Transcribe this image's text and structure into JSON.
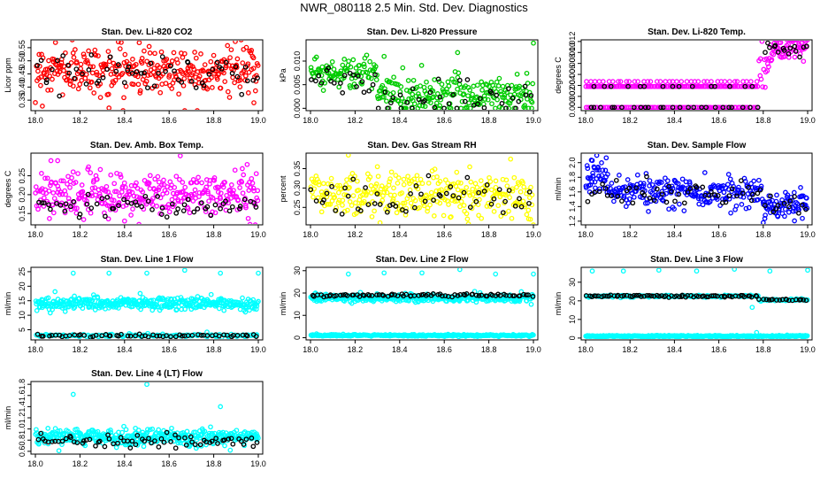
{
  "page": {
    "title": "NWR_080118  2.5 Min. Std. Dev. Diagnostics"
  },
  "colors": {
    "red": "#ff0000",
    "green": "#00cc00",
    "magenta": "#ff00ff",
    "yellow": "#ffff00",
    "blue": "#0000ff",
    "cyan": "#00ffff",
    "black": "#000000"
  },
  "chart_data": [
    {
      "id": "p1",
      "type": "scatter",
      "title": "Stan. Dev. Li-820 CO2",
      "ylabel": "Licor ppm",
      "xlim": [
        18.0,
        19.0
      ],
      "xticks": [
        "18.0",
        "18.2",
        "18.4",
        "18.6",
        "18.8",
        "19.0"
      ],
      "ylim": [
        0.31,
        0.58
      ],
      "yticks": [
        "0.35",
        "0.40",
        "0.45",
        "0.50",
        "0.55"
      ],
      "color": "red",
      "clusters": [
        {
          "x": [
            18.0,
            19.0
          ],
          "mean": 0.465,
          "sd": 0.045,
          "n": 330
        }
      ],
      "black_clusters": [
        {
          "x": [
            18.0,
            19.0
          ],
          "mean": 0.46,
          "sd": 0.035,
          "n": 60
        }
      ],
      "outliers": [
        {
          "x": 18.09,
          "y": 0.57
        },
        {
          "x": 18.33,
          "y": 0.32
        },
        {
          "x": 18.67,
          "y": 0.31
        },
        {
          "x": 18.98,
          "y": 0.34
        }
      ]
    },
    {
      "id": "p2",
      "type": "scatter",
      "title": "Stan. Dev. Li-820 Pressure",
      "ylabel": "kPa",
      "xlim": [
        18.0,
        19.0
      ],
      "xticks": [
        "18.0",
        "18.2",
        "18.4",
        "18.6",
        "18.8",
        "19.0"
      ],
      "ylim": [
        -0.0005,
        0.0145
      ],
      "yticks": [
        "0.000",
        "0.005",
        "0.010"
      ],
      "color": "green",
      "clusters": [
        {
          "x": [
            18.0,
            18.3
          ],
          "mean": 0.0075,
          "sd": 0.0016,
          "n": 90
        },
        {
          "x": [
            18.3,
            19.0
          ],
          "mean": 0.003,
          "sd": 0.0022,
          "n": 220
        }
      ],
      "black_clusters": [
        {
          "x": [
            18.0,
            18.3
          ],
          "mean": 0.006,
          "sd": 0.0015,
          "n": 20
        },
        {
          "x": [
            18.3,
            19.0
          ],
          "mean": 0.002,
          "sd": 0.002,
          "n": 40
        }
      ],
      "floor": 0.0,
      "outliers": [
        {
          "x": 18.33,
          "y": 0.011
        },
        {
          "x": 18.66,
          "y": 0.0118
        },
        {
          "x": 19.0,
          "y": 0.0138
        }
      ]
    },
    {
      "id": "p3",
      "type": "scatter",
      "title": "Stan. Dev. Li-820 Temp.",
      "ylabel": "degrees C",
      "xlim": [
        18.0,
        19.0
      ],
      "xticks": [
        "18.0",
        "18.2",
        "18.4",
        "18.6",
        "18.8",
        "19.0"
      ],
      "ylim": [
        -0.0006,
        0.0123
      ],
      "yticks": [
        "0.000",
        "0.002",
        "0.004",
        "0.006",
        "0.008",
        "0.010",
        "0.012"
      ],
      "color": "magenta",
      "levels": [
        {
          "x": [
            18.0,
            18.78
          ],
          "y": 0.0038,
          "n": 110
        },
        {
          "x": [
            18.0,
            18.78
          ],
          "y": 0.0,
          "n": 90
        },
        {
          "x": [
            18.0,
            18.78
          ],
          "y": 0.0047,
          "n": 40
        }
      ],
      "clusters": [
        {
          "x": [
            18.78,
            18.83
          ],
          "mean": 0.0075,
          "sd": 0.0015,
          "n": 15
        },
        {
          "x": [
            18.83,
            19.0
          ],
          "mean": 0.0108,
          "sd": 0.0009,
          "n": 60
        }
      ],
      "black_clusters": [
        {
          "x": [
            18.0,
            18.78
          ],
          "mean": 0.0,
          "sd": 0.0,
          "n": 25
        },
        {
          "x": [
            18.0,
            18.78
          ],
          "mean": 0.0038,
          "sd": 0.0,
          "n": 15
        },
        {
          "x": [
            18.8,
            19.0
          ],
          "mean": 0.0105,
          "sd": 0.0008,
          "n": 15
        }
      ],
      "outliers": []
    },
    {
      "id": "p4",
      "type": "scatter",
      "title": "Stan. Dev. Amb. Box Temp.",
      "ylabel": "degrees C",
      "xlim": [
        18.0,
        19.0
      ],
      "xticks": [
        "18.0",
        "18.2",
        "18.4",
        "18.6",
        "18.8",
        "19.0"
      ],
      "ylim": [
        0.12,
        0.31
      ],
      "yticks": [
        "0.15",
        "0.20",
        "0.25"
      ],
      "color": "magenta",
      "clusters": [
        {
          "x": [
            18.0,
            19.0
          ],
          "mean": 0.2,
          "sd": 0.03,
          "n": 340
        }
      ],
      "black_clusters": [
        {
          "x": [
            18.0,
            19.0
          ],
          "mean": 0.175,
          "sd": 0.015,
          "n": 60
        }
      ],
      "outliers": [
        {
          "x": 18.07,
          "y": 0.29
        },
        {
          "x": 18.1,
          "y": 0.29
        },
        {
          "x": 18.4,
          "y": 0.13
        },
        {
          "x": 18.95,
          "y": 0.28
        }
      ]
    },
    {
      "id": "p5",
      "type": "scatter",
      "title": "Stan. Dev. Gas Stream RH",
      "ylabel": "percent",
      "xlim": [
        18.0,
        19.0
      ],
      "xticks": [
        "18.0",
        "18.2",
        "18.4",
        "18.6",
        "18.8",
        "19.0"
      ],
      "ylim": [
        0.205,
        0.39
      ],
      "yticks": [
        "0.25",
        "0.30",
        "0.35"
      ],
      "color": "yellow",
      "clusters": [
        {
          "x": [
            18.0,
            19.0
          ],
          "mean": 0.285,
          "sd": 0.028,
          "n": 320
        }
      ],
      "black_clusters": [
        {
          "x": [
            18.0,
            19.0
          ],
          "mean": 0.275,
          "sd": 0.022,
          "n": 55
        }
      ],
      "outliers": [
        {
          "x": 18.17,
          "y": 0.385
        },
        {
          "x": 18.3,
          "y": 0.355
        }
      ]
    },
    {
      "id": "p6",
      "type": "scatter",
      "title": "Stan. Dev. Sample Flow",
      "ylabel": "ml/min",
      "xlim": [
        18.0,
        19.0
      ],
      "xticks": [
        "18.0",
        "18.2",
        "18.4",
        "18.6",
        "18.8",
        "19.0"
      ],
      "ylim": [
        1.15,
        2.13
      ],
      "yticks": [
        "1.2",
        "1.4",
        "1.6",
        "1.8",
        "2.0"
      ],
      "color": "blue",
      "clusters": [
        {
          "x": [
            18.0,
            18.1
          ],
          "mean": 1.78,
          "sd": 0.12,
          "n": 40
        },
        {
          "x": [
            18.1,
            18.8
          ],
          "mean": 1.6,
          "sd": 0.1,
          "n": 220
        },
        {
          "x": [
            18.8,
            19.0
          ],
          "mean": 1.42,
          "sd": 0.1,
          "n": 70
        }
      ],
      "black_clusters": [
        {
          "x": [
            18.0,
            18.8
          ],
          "mean": 1.6,
          "sd": 0.1,
          "n": 50
        },
        {
          "x": [
            18.8,
            19.0
          ],
          "mean": 1.42,
          "sd": 0.08,
          "n": 12
        }
      ],
      "outliers": [
        {
          "x": 18.05,
          "y": 2.1
        },
        {
          "x": 18.03,
          "y": 2.03
        },
        {
          "x": 18.8,
          "y": 1.18
        }
      ]
    },
    {
      "id": "p7",
      "type": "scatter",
      "title": "Stan. Dev. Line 1 Flow",
      "ylabel": "ml/min",
      "xlim": [
        18.0,
        19.0
      ],
      "xticks": [
        "18.0",
        "18.2",
        "18.4",
        "18.6",
        "18.8",
        "19.0"
      ],
      "ylim": [
        1.5,
        26.5
      ],
      "yticks": [
        "5",
        "10",
        "15",
        "20",
        "25"
      ],
      "color": "cyan",
      "clusters": [
        {
          "x": [
            18.0,
            19.0
          ],
          "mean": 14.0,
          "sd": 1.1,
          "n": 380
        },
        {
          "x": [
            18.0,
            19.0
          ],
          "mean": 3.0,
          "sd": 0.25,
          "n": 120
        }
      ],
      "black_clusters": [
        {
          "x": [
            18.0,
            19.0
          ],
          "mean": 3.0,
          "sd": 0.2,
          "n": 60
        }
      ],
      "outliers": [
        {
          "x": 18.17,
          "y": 24.5
        },
        {
          "x": 18.33,
          "y": 24.5
        },
        {
          "x": 18.5,
          "y": 24.5
        },
        {
          "x": 18.67,
          "y": 25.5
        },
        {
          "x": 18.83,
          "y": 24.5
        },
        {
          "x": 19.0,
          "y": 24.5
        },
        {
          "x": 18.47,
          "y": 17.5
        },
        {
          "x": 18.77,
          "y": 4.2
        }
      ]
    },
    {
      "id": "p8",
      "type": "scatter",
      "title": "Stan. Dev. Line 2 Flow",
      "ylabel": "ml/min",
      "xlim": [
        18.0,
        19.0
      ],
      "xticks": [
        "18.0",
        "18.2",
        "18.4",
        "18.6",
        "18.8",
        "19.0"
      ],
      "ylim": [
        -1.0,
        31.5
      ],
      "yticks": [
        "0",
        "10",
        "20",
        "30"
      ],
      "color": "cyan",
      "clusters": [
        {
          "x": [
            18.0,
            19.0
          ],
          "mean": 17.8,
          "sd": 0.9,
          "n": 380
        },
        {
          "x": [
            18.0,
            19.0
          ],
          "mean": 1.0,
          "sd": 0.2,
          "n": 320
        }
      ],
      "black_clusters": [
        {
          "x": [
            18.0,
            19.0
          ],
          "mean": 19.0,
          "sd": 0.3,
          "n": 80
        }
      ],
      "outliers": [
        {
          "x": 18.17,
          "y": 28.5
        },
        {
          "x": 18.33,
          "y": 29.0
        },
        {
          "x": 18.5,
          "y": 29.0
        },
        {
          "x": 18.67,
          "y": 30.5
        },
        {
          "x": 18.83,
          "y": 28.5
        },
        {
          "x": 19.0,
          "y": 28.5
        }
      ]
    },
    {
      "id": "p9",
      "type": "scatter",
      "title": "Stan. Dev. Line 3 Flow",
      "ylabel": "ml/min",
      "xlim": [
        18.0,
        19.0
      ],
      "xticks": [
        "18.0",
        "18.2",
        "18.4",
        "18.6",
        "18.8",
        "19.0"
      ],
      "ylim": [
        -1.0,
        38.0
      ],
      "yticks": [
        "0",
        "10",
        "20",
        "30"
      ],
      "color": "cyan",
      "clusters": [
        {
          "x": [
            18.0,
            18.78
          ],
          "mean": 22.5,
          "sd": 0.3,
          "n": 140
        },
        {
          "x": [
            18.78,
            19.0
          ],
          "mean": 20.5,
          "sd": 0.3,
          "n": 40
        },
        {
          "x": [
            18.0,
            19.0
          ],
          "mean": 1.0,
          "sd": 0.2,
          "n": 360
        }
      ],
      "black_clusters": [
        {
          "x": [
            18.0,
            18.78
          ],
          "mean": 22.5,
          "sd": 0.3,
          "n": 70
        },
        {
          "x": [
            18.78,
            19.0
          ],
          "mean": 20.5,
          "sd": 0.3,
          "n": 18
        }
      ],
      "outliers": [
        {
          "x": 18.03,
          "y": 36.0
        },
        {
          "x": 18.17,
          "y": 36.0
        },
        {
          "x": 18.33,
          "y": 36.5
        },
        {
          "x": 18.5,
          "y": 36.0
        },
        {
          "x": 18.67,
          "y": 37.0
        },
        {
          "x": 18.83,
          "y": 36.0
        },
        {
          "x": 19.0,
          "y": 36.5
        },
        {
          "x": 18.75,
          "y": 16.5
        },
        {
          "x": 18.77,
          "y": 3.0
        }
      ]
    },
    {
      "id": "p10",
      "type": "scatter",
      "title": "Stan. Dev. Line 4 (LT) Flow",
      "ylabel": "ml/min",
      "xlim": [
        18.0,
        19.0
      ],
      "xticks": [
        "18.0",
        "18.2",
        "18.4",
        "18.6",
        "18.8",
        "19.0"
      ],
      "ylim": [
        0.55,
        1.85
      ],
      "yticks": [
        "0.6",
        "0.8",
        "1.0",
        "1.2",
        "1.4",
        "1.6",
        "1.8"
      ],
      "color": "cyan",
      "clusters": [
        {
          "x": [
            18.0,
            19.0
          ],
          "mean": 0.85,
          "sd": 0.07,
          "n": 400
        }
      ],
      "black_clusters": [
        {
          "x": [
            18.0,
            19.0
          ],
          "mean": 0.8,
          "sd": 0.06,
          "n": 70
        }
      ],
      "outliers": [
        {
          "x": 18.17,
          "y": 1.62
        },
        {
          "x": 18.5,
          "y": 1.8
        },
        {
          "x": 18.83,
          "y": 1.4
        }
      ]
    }
  ]
}
